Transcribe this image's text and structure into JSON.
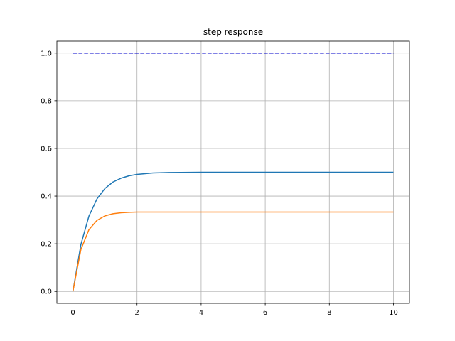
{
  "chart_data": {
    "type": "line",
    "title": "step response",
    "xlabel": "",
    "ylabel": "",
    "xlim": [
      -0.5,
      10.5
    ],
    "ylim": [
      -0.05,
      1.05
    ],
    "xticks": [
      0,
      2,
      4,
      6,
      8,
      10
    ],
    "yticks": [
      0.0,
      0.2,
      0.4,
      0.6,
      0.8,
      1.0
    ],
    "xtick_labels": [
      "0",
      "2",
      "4",
      "6",
      "8",
      "10"
    ],
    "ytick_labels": [
      "0.0",
      "0.2",
      "0.4",
      "0.6",
      "0.8",
      "1.0"
    ],
    "grid": true,
    "legend": "none",
    "series": [
      {
        "color": "#1f77b4",
        "style": "solid",
        "x": [
          0,
          0.25,
          0.5,
          0.75,
          1.0,
          1.25,
          1.5,
          1.75,
          2.0,
          2.5,
          3.0,
          4.0,
          5.0,
          6.0,
          7.0,
          8.0,
          9.0,
          10.0
        ],
        "y": [
          0,
          0.197,
          0.316,
          0.388,
          0.432,
          0.459,
          0.475,
          0.485,
          0.491,
          0.497,
          0.499,
          0.5,
          0.5,
          0.5,
          0.5,
          0.5,
          0.5,
          0.5
        ]
      },
      {
        "color": "#ff7f0e",
        "style": "solid",
        "x": [
          0,
          0.25,
          0.5,
          0.75,
          1.0,
          1.25,
          1.5,
          1.75,
          2.0,
          2.5,
          3.0,
          4.0,
          5.0,
          6.0,
          7.0,
          8.0,
          9.0,
          10.0
        ],
        "y": [
          0,
          0.176,
          0.259,
          0.298,
          0.317,
          0.326,
          0.33,
          0.332,
          0.333,
          0.333,
          0.333,
          0.333,
          0.333,
          0.333,
          0.333,
          0.333,
          0.333,
          0.333
        ]
      },
      {
        "color": "#0000cc",
        "style": "dashed",
        "x": [
          0,
          10
        ],
        "y": [
          1.0,
          1.0
        ]
      }
    ]
  }
}
